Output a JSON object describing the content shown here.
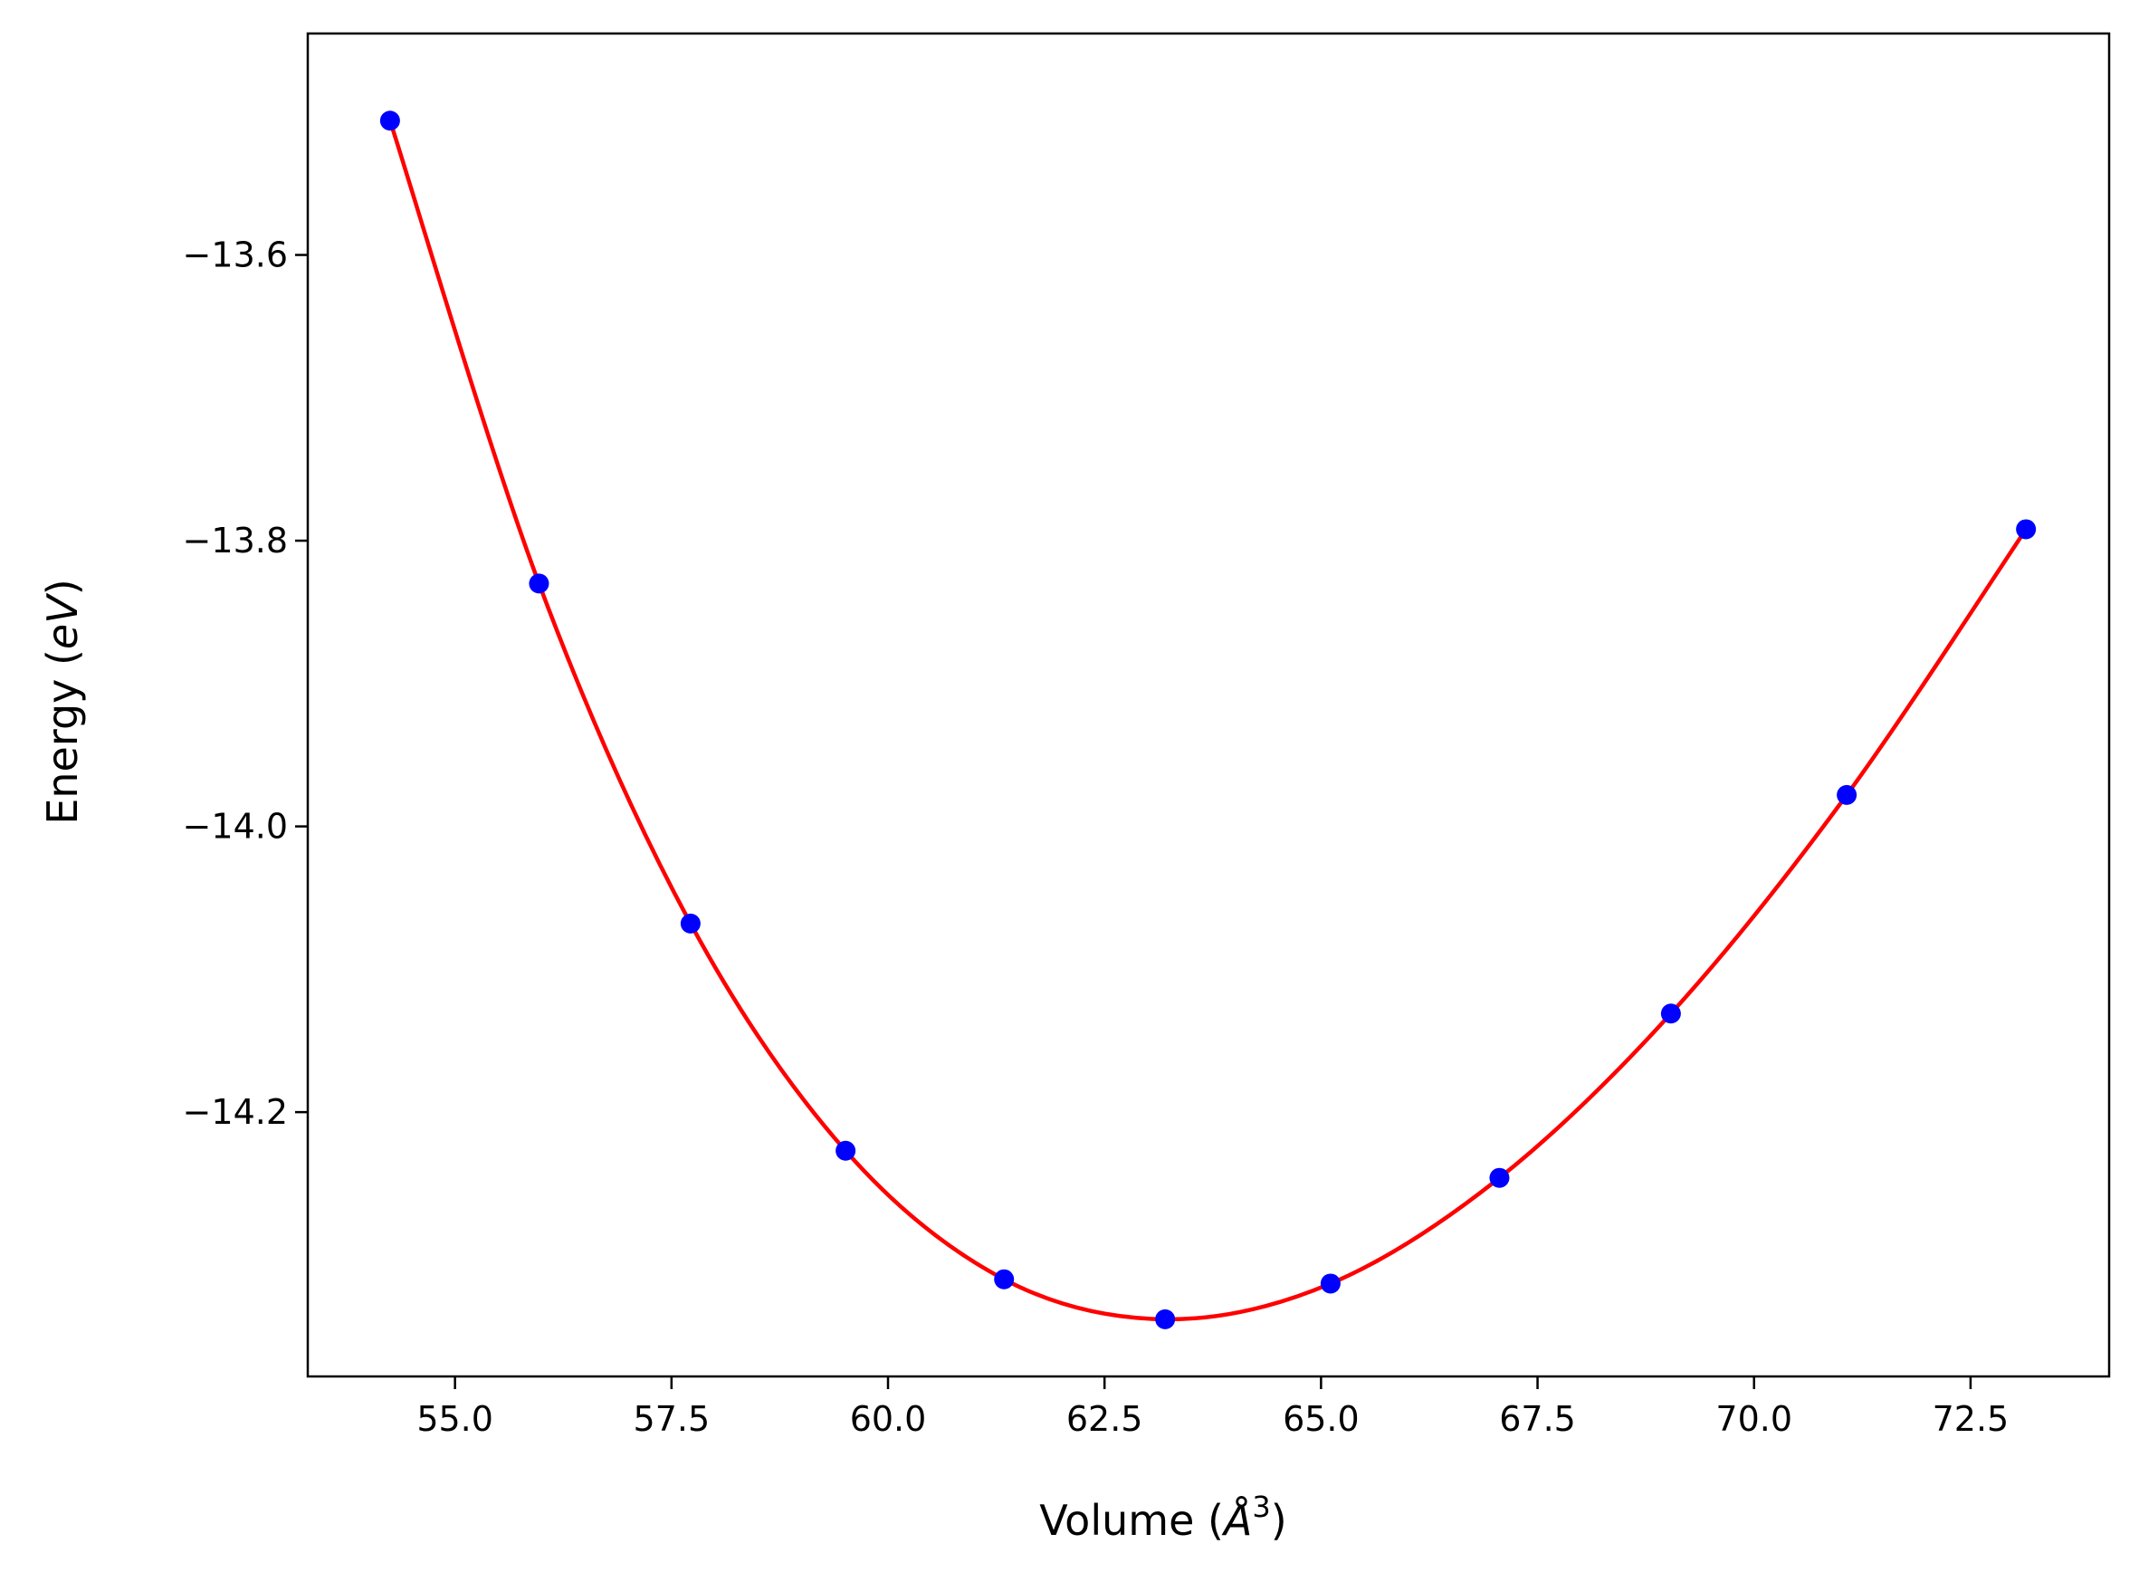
{
  "colors": {
    "fit_line": "#ff0000",
    "markers": "#0000ff",
    "axes": "#000000",
    "background": "#ffffff"
  },
  "chart_data": {
    "type": "scatter",
    "title": "",
    "xlabel": "Volume ($\\AA^3$)",
    "ylabel": "Energy ($eV$)",
    "xlabel_parts": {
      "prefix": "Volume (",
      "symbol": "Å",
      "sup": "3",
      "suffix": ")"
    },
    "ylabel_parts": {
      "prefix": "Energy (",
      "symbol": "eV",
      "suffix": ")"
    },
    "xlim": [
      53.3,
      74.1
    ],
    "ylim": [
      -14.385,
      -13.445
    ],
    "xticks": [
      55.0,
      57.5,
      60.0,
      62.5,
      65.0,
      67.5,
      70.0,
      72.5
    ],
    "xtick_labels": [
      "55.0",
      "57.5",
      "60.0",
      "62.5",
      "65.0",
      "67.5",
      "70.0",
      "72.5"
    ],
    "yticks": [
      -13.6,
      -13.8,
      -14.0,
      -14.2
    ],
    "ytick_labels": [
      "−13.6",
      "−13.8",
      "−14.0",
      "−14.2"
    ],
    "grid": false,
    "legend": "none",
    "series": [
      {
        "kind": "points",
        "marker": "circle",
        "x": [
          54.25,
          55.97,
          57.72,
          59.51,
          61.34,
          63.2,
          65.11,
          67.06,
          69.04,
          71.07,
          73.14
        ],
        "y": [
          -13.506,
          -13.83,
          -14.068,
          -14.227,
          -14.317,
          -14.345,
          -14.32,
          -14.246,
          -14.131,
          -13.978,
          -13.792
        ]
      },
      {
        "kind": "fit-curve",
        "line": "solid",
        "x": [
          54.25,
          55.97,
          57.72,
          59.51,
          61.34,
          63.2,
          65.11,
          67.06,
          69.04,
          71.07,
          73.14
        ],
        "y": [
          -13.506,
          -13.83,
          -14.068,
          -14.227,
          -14.317,
          -14.345,
          -14.32,
          -14.246,
          -14.131,
          -13.978,
          -13.792
        ]
      }
    ]
  }
}
